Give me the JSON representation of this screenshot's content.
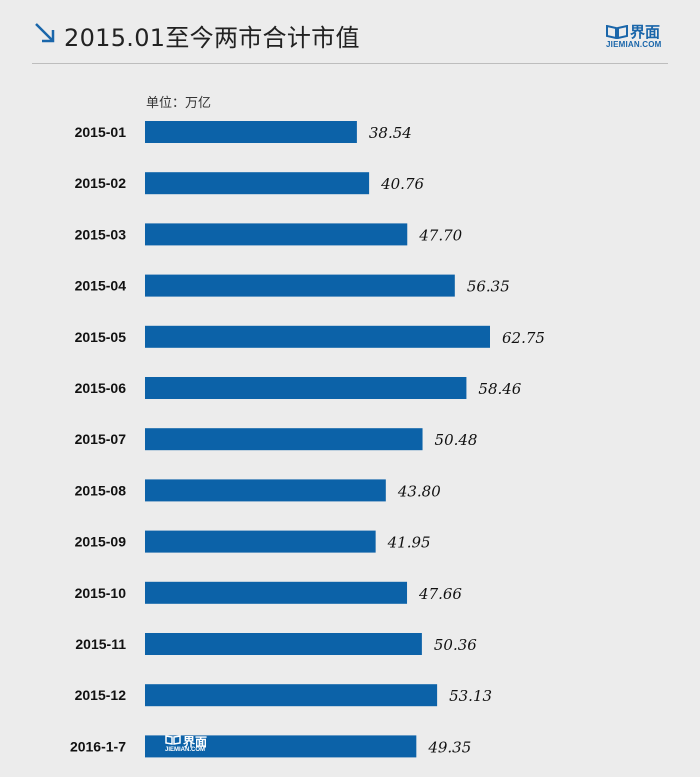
{
  "header": {
    "title": "2015.01至今两市合计市值",
    "arrow_icon": "arrow-down-right-icon",
    "logo_cn": "界面",
    "logo_en": "JIEMIAN.COM"
  },
  "unit_label": "单位：万亿",
  "watermark": {
    "cn": "界面",
    "en": "JIEMIAN.COM"
  },
  "colors": {
    "bar": "#0c62a8",
    "accent": "#1a66aa",
    "background": "#ececec"
  },
  "chart_data": {
    "type": "bar",
    "orientation": "horizontal",
    "categories": [
      "2015-01",
      "2015-02",
      "2015-03",
      "2015-04",
      "2015-05",
      "2015-06",
      "2015-07",
      "2015-08",
      "2015-09",
      "2015-10",
      "2015-11",
      "2015-12",
      "2016-1-7"
    ],
    "values": [
      38.54,
      40.76,
      47.7,
      56.35,
      62.75,
      58.46,
      50.48,
      43.8,
      41.95,
      47.66,
      50.36,
      53.13,
      49.35
    ],
    "value_labels": [
      "38.54",
      "40.76",
      "47.70",
      "56.35",
      "62.75",
      "58.46",
      "50.48",
      "43.80",
      "41.95",
      "47.66",
      "50.36",
      "53.13",
      "49.35"
    ],
    "title": "2015.01至今两市合计市值",
    "xlabel": "",
    "ylabel": "",
    "unit": "万亿",
    "xlim": [
      0,
      62.75
    ],
    "grid": false,
    "legend": "none"
  }
}
